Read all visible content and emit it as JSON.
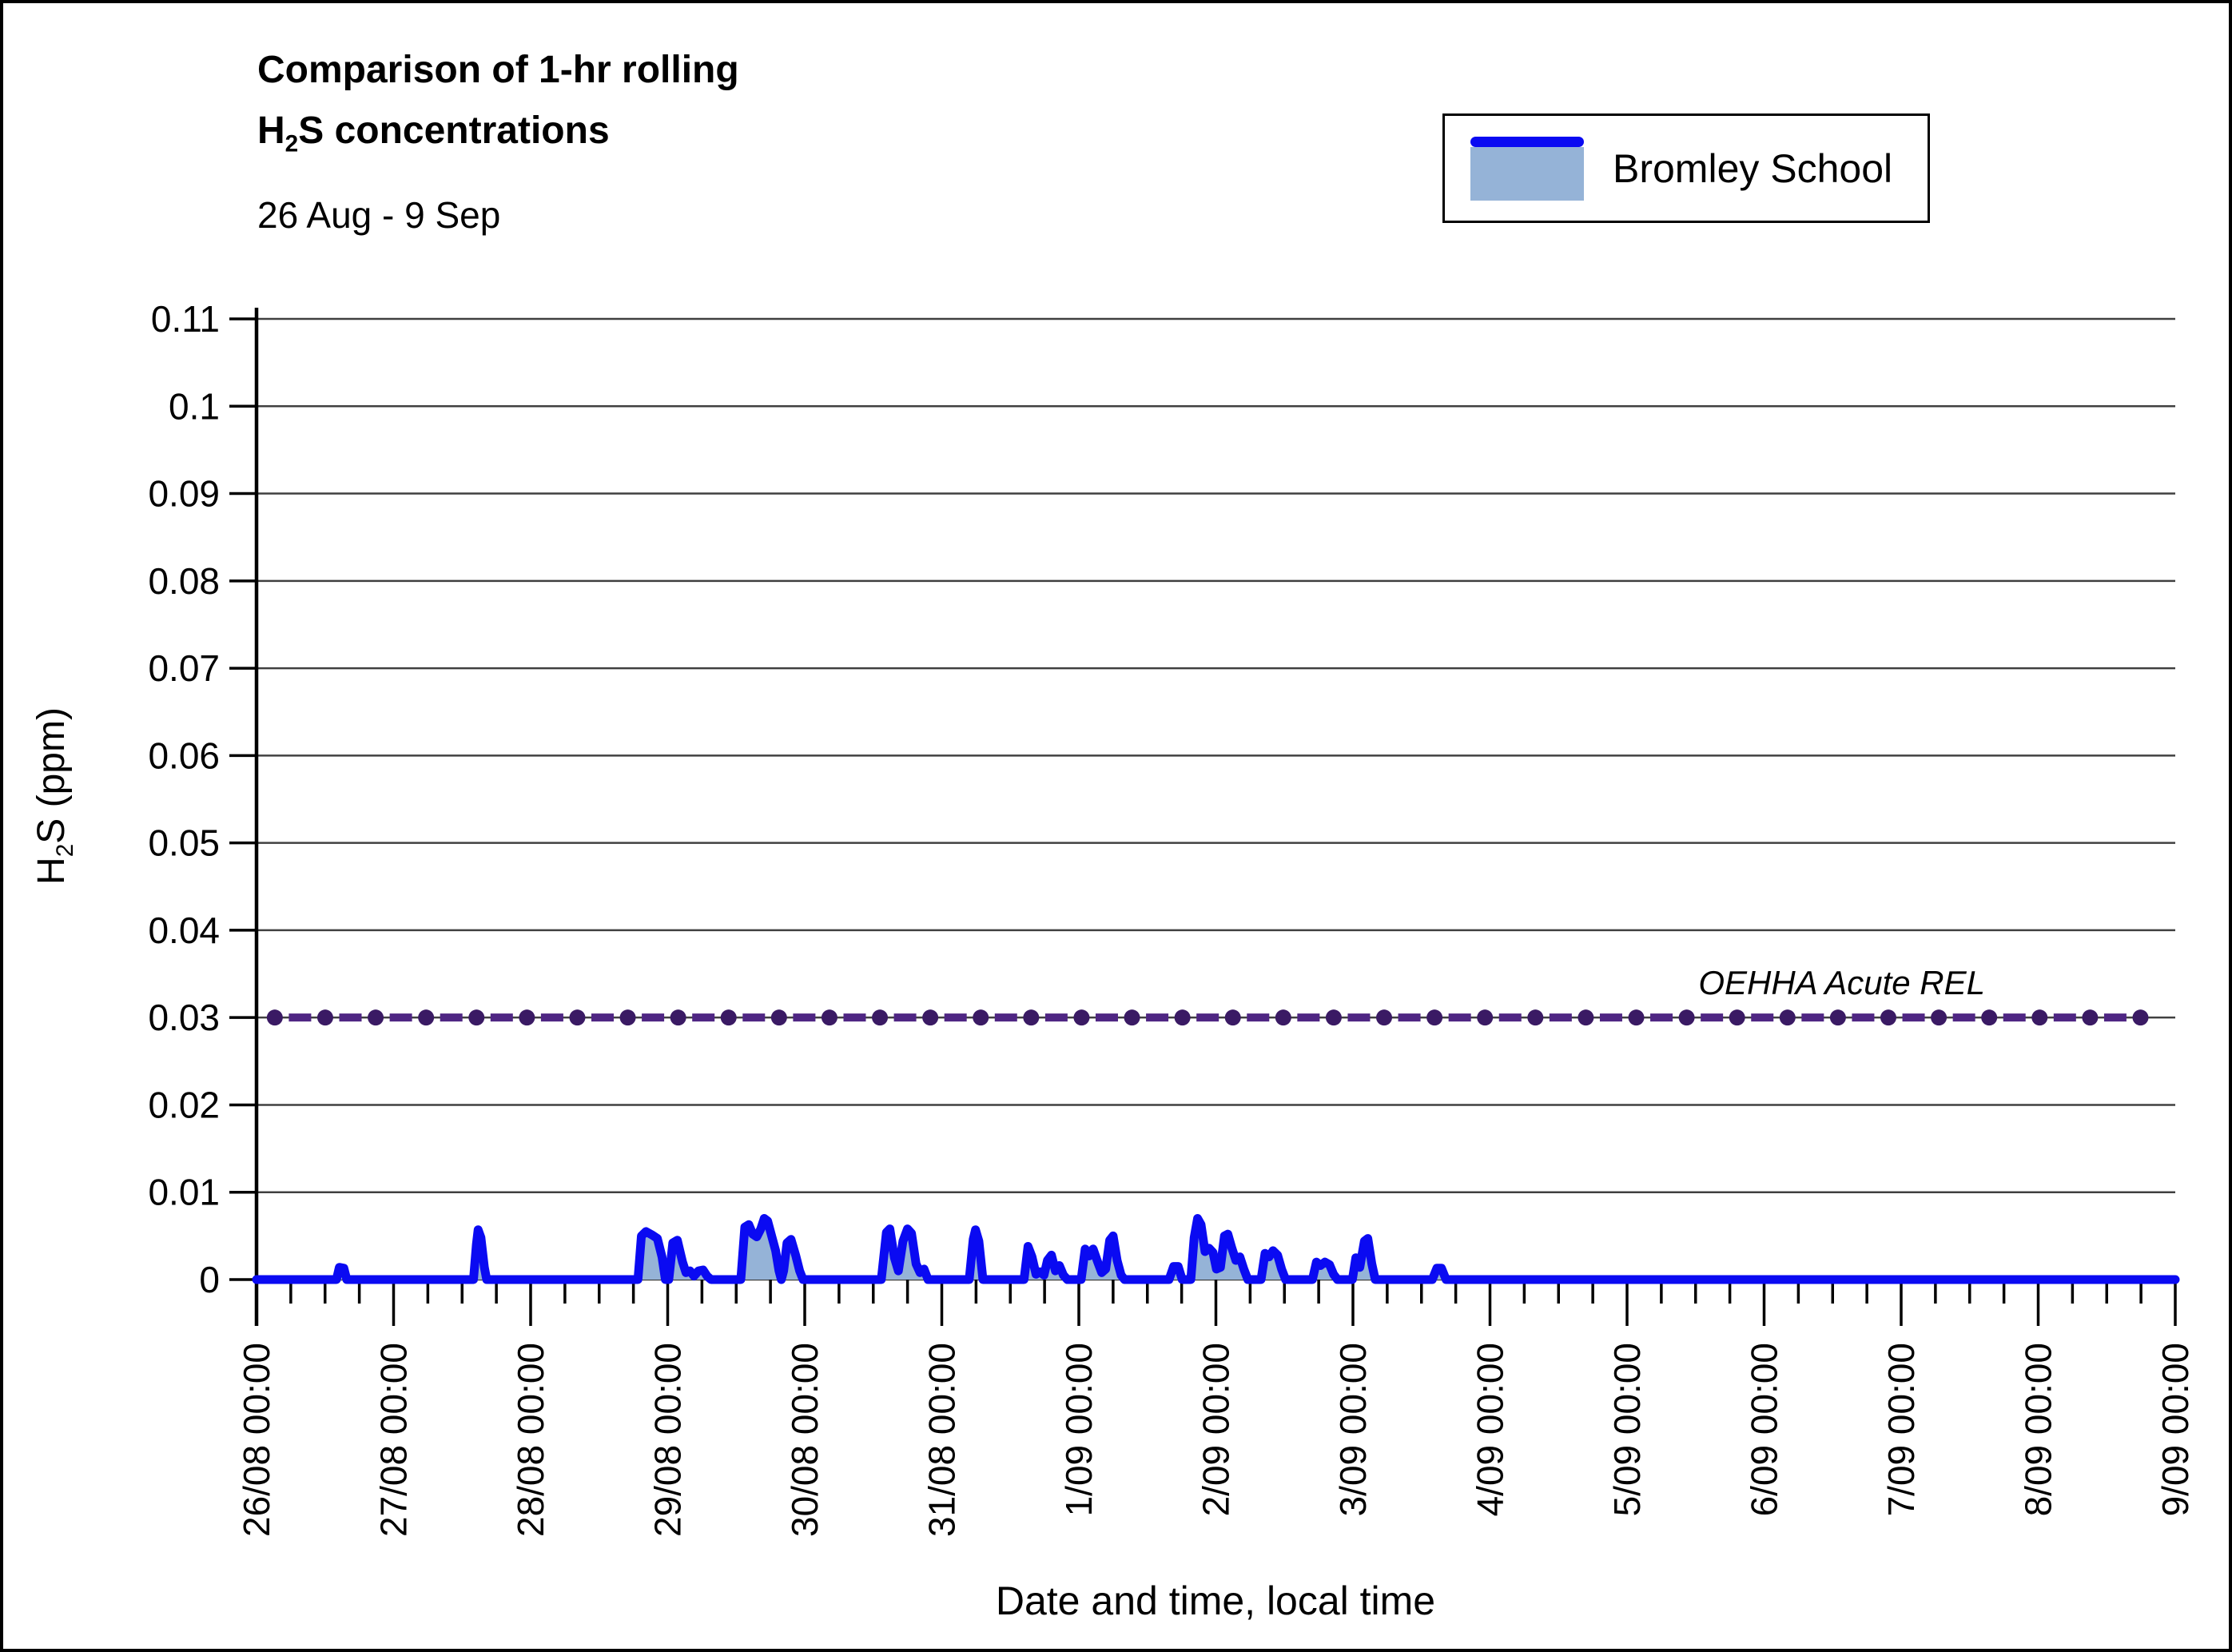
{
  "header": {
    "title_line1": "Comparison of 1-hr rolling",
    "title2_h": "H",
    "title2_sub": "2",
    "title2_rest": "S concentrations",
    "subtitle": "26 Aug - 9 Sep"
  },
  "legend": {
    "label": "Bromley School"
  },
  "axes": {
    "y_title_h": "H",
    "y_title_sub": "2",
    "y_title_rest": "S (ppm)",
    "x_title": "Date and time, local time"
  },
  "rel_annotation": "OEHHA Acute REL",
  "colors": {
    "series_line": "#0a0af2",
    "series_fill": "#95b3d7",
    "rel_marker": "#3a1a64",
    "rel_dash": "#4f2683",
    "gridline": "#404040",
    "axis": "#000000",
    "text": "#000000"
  },
  "chart_data": {
    "type": "area",
    "title": "Comparison of 1-hr rolling H2S concentrations",
    "subtitle": "26 Aug - 9 Sep",
    "xlabel": "Date and time, local time",
    "ylabel": "H2S (ppm)",
    "ylim": [
      0,
      0.11
    ],
    "grid": true,
    "legend_position": "top-right",
    "y_ticks": [
      "0.11",
      "0.1",
      "0.09",
      "0.08",
      "0.07",
      "0.06",
      "0.05",
      "0.04",
      "0.03",
      "0.02",
      "0.01",
      "0"
    ],
    "x_tick_labels": [
      "26/08 00:00",
      "27/08 00:00",
      "28/08 00:00",
      "29/08 00:00",
      "30/08 00:00",
      "31/08 00:00",
      "1/09 00:00",
      "2/09 00:00",
      "3/09 00:00",
      "4/09 00:00",
      "5/09 00:00",
      "6/09 00:00",
      "7/09 00:00",
      "8/09 00:00",
      "9/09 00:00"
    ],
    "x_range_hours": [
      0,
      336
    ],
    "x_major_tick_hours": 24,
    "x_minor_tick_hours": 6,
    "reference_line": {
      "name": "OEHHA Acute REL",
      "value": 0.03,
      "marker_count": 38,
      "first_marker_hour": 3.2,
      "marker_step_hours": 8.83
    },
    "series": [
      {
        "name": "Bromley School",
        "units": "ppm",
        "points": [
          [
            0,
            0
          ],
          [
            14,
            0
          ],
          [
            14.5,
            0.0014
          ],
          [
            15.3,
            0.0013
          ],
          [
            15.8,
            0
          ],
          [
            38,
            0
          ],
          [
            38.5,
            0.004
          ],
          [
            38.8,
            0.0057
          ],
          [
            39.3,
            0.0048
          ],
          [
            39.9,
            0.0014
          ],
          [
            40.3,
            0
          ],
          [
            66.8,
            0
          ],
          [
            67.4,
            0.005
          ],
          [
            68.2,
            0.0055
          ],
          [
            69.3,
            0.0051
          ],
          [
            70.2,
            0.0047
          ],
          [
            71,
            0.0026
          ],
          [
            71.6,
            0
          ],
          [
            72.2,
            0
          ],
          [
            72.9,
            0.0042
          ],
          [
            73.7,
            0.0045
          ],
          [
            74.6,
            0.002
          ],
          [
            75.2,
            0.0008
          ],
          [
            75.9,
            0.001
          ],
          [
            76.6,
            0.0004
          ],
          [
            77.4,
            0.001
          ],
          [
            78.2,
            0.0011
          ],
          [
            78.9,
            0.0004
          ],
          [
            79.6,
            0
          ],
          [
            84.8,
            0
          ],
          [
            85.5,
            0.006
          ],
          [
            86.2,
            0.0063
          ],
          [
            86.9,
            0.0052
          ],
          [
            87.6,
            0.0049
          ],
          [
            88.3,
            0.0058
          ],
          [
            88.9,
            0.007
          ],
          [
            89.5,
            0.0067
          ],
          [
            90.2,
            0.005
          ],
          [
            90.9,
            0.0033
          ],
          [
            91.5,
            0.001
          ],
          [
            91.9,
            0
          ],
          [
            92.3,
            0.001
          ],
          [
            92.9,
            0.0042
          ],
          [
            93.6,
            0.0046
          ],
          [
            94.4,
            0.0028
          ],
          [
            95.1,
            0.001
          ],
          [
            95.7,
            0
          ],
          [
            109.4,
            0
          ],
          [
            110.3,
            0.0054
          ],
          [
            110.9,
            0.0058
          ],
          [
            111.7,
            0.0025
          ],
          [
            112.4,
            0.001
          ],
          [
            113.2,
            0.0044
          ],
          [
            114,
            0.0058
          ],
          [
            114.7,
            0.0053
          ],
          [
            115.5,
            0.0018
          ],
          [
            116.2,
            0.0008
          ],
          [
            116.9,
            0.0012
          ],
          [
            117.6,
            0
          ],
          [
            124.8,
            0
          ],
          [
            125.5,
            0.0046
          ],
          [
            125.9,
            0.0057
          ],
          [
            126.5,
            0.0044
          ],
          [
            127.2,
            0
          ],
          [
            134.4,
            0
          ],
          [
            135.1,
            0.0038
          ],
          [
            135.8,
            0.0026
          ],
          [
            136.5,
            0.0006
          ],
          [
            137.2,
            0.0009
          ],
          [
            137.9,
            0.0005
          ],
          [
            138.5,
            0.0022
          ],
          [
            139.2,
            0.0028
          ],
          [
            139.9,
            0.001
          ],
          [
            140.6,
            0.0016
          ],
          [
            141.3,
            0.0005
          ],
          [
            142,
            0
          ],
          [
            144.4,
            0
          ],
          [
            145.1,
            0.0035
          ],
          [
            145.8,
            0.0027
          ],
          [
            146.5,
            0.0035
          ],
          [
            147.3,
            0.002
          ],
          [
            148,
            0.0008
          ],
          [
            148.7,
            0.0012
          ],
          [
            149.4,
            0.0045
          ],
          [
            150,
            0.005
          ],
          [
            150.7,
            0.0022
          ],
          [
            151.4,
            0.0005
          ],
          [
            152,
            0
          ],
          [
            159.8,
            0
          ],
          [
            160.6,
            0.0015
          ],
          [
            161.4,
            0.0015
          ],
          [
            162.1,
            0
          ],
          [
            163.6,
            0
          ],
          [
            164.2,
            0.0048
          ],
          [
            164.8,
            0.007
          ],
          [
            165.4,
            0.0063
          ],
          [
            166.1,
            0.0032
          ],
          [
            166.8,
            0.0036
          ],
          [
            167.5,
            0.0031
          ],
          [
            168.1,
            0.0012
          ],
          [
            168.8,
            0.0014
          ],
          [
            169.5,
            0.005
          ],
          [
            170.1,
            0.0052
          ],
          [
            170.8,
            0.0036
          ],
          [
            171.5,
            0.0022
          ],
          [
            172.2,
            0.0026
          ],
          [
            172.9,
            0.0012
          ],
          [
            173.6,
            0
          ],
          [
            175.9,
            0
          ],
          [
            176.6,
            0.003
          ],
          [
            177.3,
            0.0026
          ],
          [
            178,
            0.0033
          ],
          [
            178.8,
            0.0028
          ],
          [
            179.5,
            0.0012
          ],
          [
            180.2,
            0
          ],
          [
            184.9,
            0
          ],
          [
            185.6,
            0.002
          ],
          [
            186.3,
            0.0016
          ],
          [
            187.1,
            0.002
          ],
          [
            187.9,
            0.0017
          ],
          [
            188.6,
            0.0006
          ],
          [
            189.3,
            0
          ],
          [
            191.9,
            0
          ],
          [
            192.5,
            0.0025
          ],
          [
            193.2,
            0.0014
          ],
          [
            194,
            0.0044
          ],
          [
            194.6,
            0.0047
          ],
          [
            195.3,
            0.0018
          ],
          [
            195.9,
            0
          ],
          [
            205.9,
            0
          ],
          [
            206.7,
            0.0013
          ],
          [
            207.5,
            0.0013
          ],
          [
            208.3,
            0
          ],
          [
            336,
            0
          ]
        ]
      }
    ]
  }
}
